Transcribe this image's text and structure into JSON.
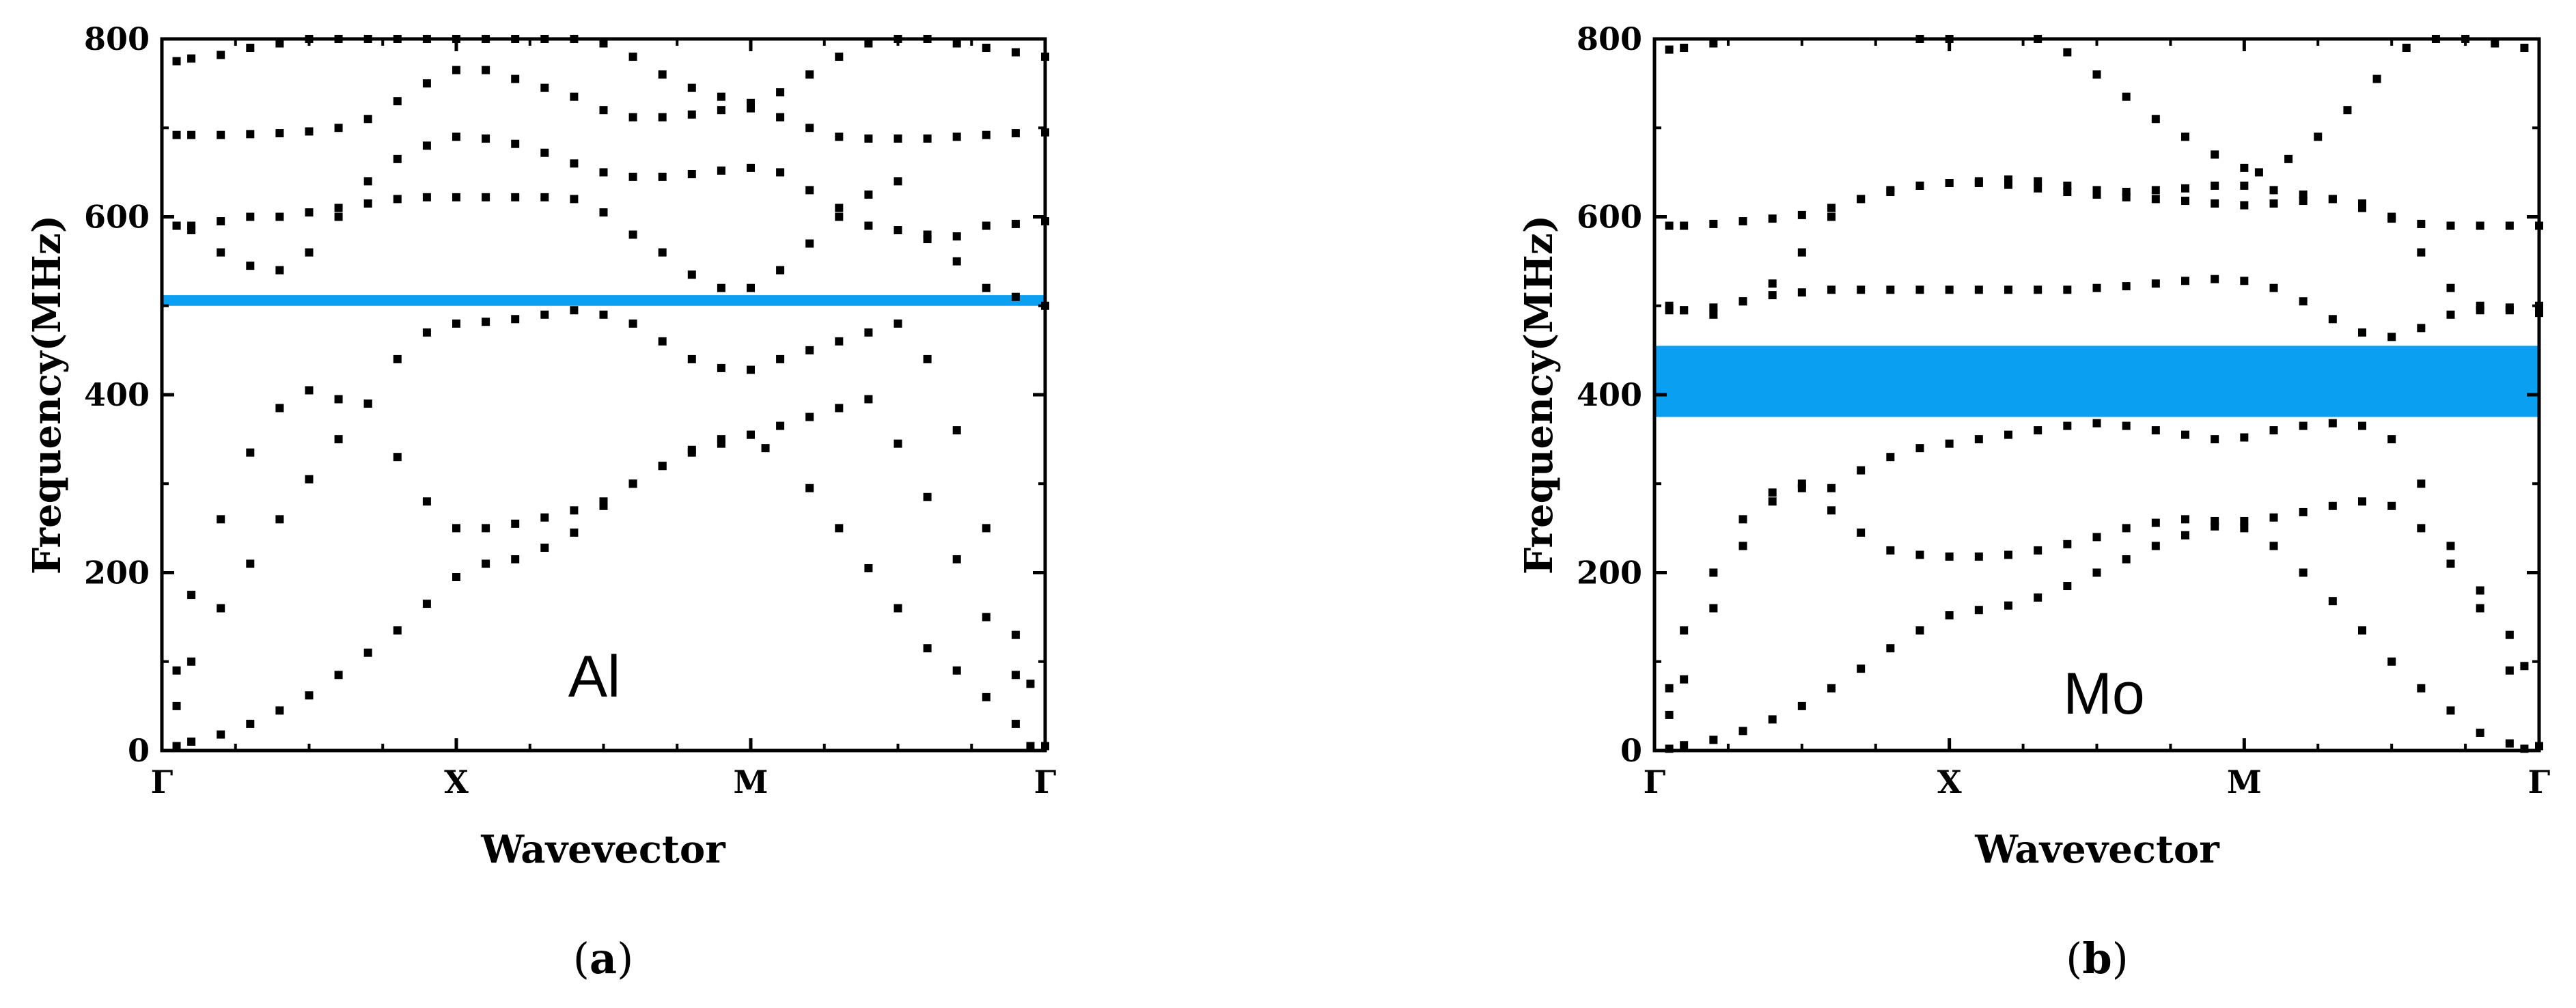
{
  "chart_data": [
    {
      "type": "scatter",
      "panel_label": "a",
      "annotation": "Al",
      "xlabel": "Wavevector",
      "ylabel": "Frequency(MHz)",
      "ylim": [
        0,
        800
      ],
      "yticks": [
        "0",
        "200",
        "400",
        "600",
        "800"
      ],
      "x_ticks": [
        "Γ",
        "X",
        "M",
        "Γ"
      ],
      "x_range": [
        0,
        3
      ],
      "band_gap": {
        "from": 500,
        "to": 512,
        "color": "#0a9ff0"
      },
      "point_color": "#000000",
      "series": [
        {
          "x": [
            0.05,
            0.1,
            0.2,
            0.3,
            0.4,
            0.5,
            0.6,
            0.7,
            0.8,
            0.9,
            1.0,
            1.1,
            1.2,
            1.3,
            1.4,
            1.5,
            1.6,
            1.7,
            1.8,
            1.9,
            2.0,
            2.1,
            2.2,
            2.3,
            2.4,
            2.5,
            2.6,
            2.7,
            2.8,
            2.9,
            3.0
          ],
          "y": [
            5,
            10,
            18,
            30,
            45,
            62,
            85,
            110,
            135,
            165,
            195,
            210,
            215,
            228,
            245,
            275,
            300,
            320,
            338,
            350,
            355,
            365,
            375,
            385,
            395,
            345,
            285,
            215,
            150,
            85,
            5
          ]
        },
        {
          "x": [
            0.05,
            0.1,
            0.2,
            0.3,
            0.4,
            0.5,
            0.6,
            0.7,
            0.8,
            0.9,
            1.0,
            1.1,
            1.2,
            1.3,
            1.4,
            1.5,
            1.6,
            1.7,
            1.8,
            1.9,
            2.0,
            2.05,
            2.2,
            2.3,
            2.4,
            2.5,
            2.6,
            2.7,
            2.8,
            2.9,
            2.95
          ],
          "y": [
            50,
            100,
            160,
            210,
            260,
            305,
            350,
            390,
            330,
            280,
            250,
            250,
            255,
            262,
            270,
            280,
            300,
            320,
            335,
            345,
            355,
            340,
            295,
            250,
            205,
            160,
            115,
            90,
            60,
            30,
            5
          ]
        },
        {
          "x": [
            0.05,
            0.1,
            0.2,
            0.3,
            0.4,
            0.5,
            0.6,
            0.7,
            0.8,
            0.9,
            1.0,
            1.1,
            1.2,
            1.3,
            1.4,
            1.5,
            1.6,
            1.7,
            1.8,
            1.9,
            2.0,
            2.1,
            2.2,
            2.3,
            2.4,
            2.5,
            2.6,
            2.7,
            2.8,
            2.9,
            2.95
          ],
          "y": [
            90,
            175,
            260,
            335,
            385,
            405,
            395,
            390,
            440,
            470,
            480,
            482,
            485,
            490,
            495,
            490,
            480,
            460,
            440,
            430,
            428,
            440,
            450,
            460,
            470,
            480,
            440,
            360,
            250,
            130,
            75
          ]
        },
        {
          "x": [
            0.05,
            0.1,
            0.2,
            0.3,
            0.4,
            0.5,
            0.6,
            0.7,
            0.8,
            0.9,
            1.0,
            1.1,
            1.2,
            1.3,
            1.4,
            1.5,
            1.6,
            1.7,
            1.8,
            1.9,
            2.0,
            2.1,
            2.2,
            2.3,
            2.4,
            2.5,
            2.6,
            2.7,
            2.8,
            2.9,
            3.0
          ],
          "y": [
            590,
            585,
            560,
            545,
            540,
            560,
            600,
            615,
            620,
            622,
            622,
            622,
            622,
            622,
            620,
            605,
            580,
            560,
            535,
            520,
            520,
            540,
            570,
            600,
            625,
            640,
            580,
            550,
            520,
            510,
            500
          ]
        },
        {
          "x": [
            0.05,
            0.1,
            0.2,
            0.3,
            0.4,
            0.5,
            0.6,
            0.7,
            0.8,
            0.9,
            1.0,
            1.1,
            1.2,
            1.3,
            1.4,
            1.5,
            1.6,
            1.7,
            1.8,
            1.9,
            2.0,
            2.1,
            2.2,
            2.3,
            2.4,
            2.5,
            2.6,
            2.7,
            2.8,
            2.9,
            3.0
          ],
          "y": [
            590,
            590,
            595,
            600,
            600,
            605,
            610,
            640,
            665,
            680,
            690,
            688,
            682,
            672,
            660,
            650,
            645,
            645,
            648,
            652,
            655,
            650,
            630,
            610,
            590,
            585,
            575,
            578,
            590,
            592,
            595
          ]
        },
        {
          "x": [
            0.05,
            0.1,
            0.2,
            0.3,
            0.4,
            0.5,
            0.6,
            0.7,
            0.8,
            0.9,
            1.0,
            1.1,
            1.2,
            1.3,
            1.4,
            1.5,
            1.6,
            1.7,
            1.8,
            1.9,
            2.0,
            2.1,
            2.2,
            2.3,
            2.4,
            2.5,
            2.6,
            2.7,
            2.8,
            2.9,
            3.0
          ],
          "y": [
            692,
            692,
            692,
            693,
            694,
            696,
            700,
            710,
            730,
            750,
            765,
            765,
            755,
            745,
            735,
            720,
            712,
            712,
            715,
            720,
            722,
            712,
            700,
            690,
            688,
            688,
            688,
            690,
            692,
            694,
            695
          ]
        },
        {
          "x": [
            0.05,
            0.1,
            0.2,
            0.3,
            0.4,
            0.5,
            0.6,
            0.7,
            0.8,
            0.9,
            1.0,
            1.1,
            1.2,
            1.3,
            1.4,
            1.5,
            1.6,
            1.7,
            1.8,
            1.9,
            2.0,
            2.1,
            2.2,
            2.3,
            2.4,
            2.5,
            2.6,
            2.7,
            2.8,
            2.9,
            3.0
          ],
          "y": [
            775,
            778,
            782,
            790,
            795,
            800,
            800,
            800,
            800,
            800,
            800,
            800,
            800,
            800,
            800,
            795,
            780,
            760,
            745,
            735,
            728,
            740,
            760,
            780,
            795,
            800,
            800,
            795,
            790,
            785,
            780
          ]
        }
      ]
    },
    {
      "type": "scatter",
      "panel_label": "b",
      "annotation": "Mo",
      "xlabel": "Wavevector",
      "ylabel": "Frequency(MHz)",
      "ylim": [
        0,
        800
      ],
      "yticks": [
        "0",
        "200",
        "400",
        "600",
        "800"
      ],
      "x_ticks": [
        "Γ",
        "X",
        "M",
        "Γ"
      ],
      "x_range": [
        0,
        3
      ],
      "band_gap": {
        "from": 375,
        "to": 455,
        "color": "#0a9ff0"
      },
      "point_color": "#000000",
      "series": [
        {
          "x": [
            0.05,
            0.1,
            0.2,
            0.3,
            0.4,
            0.5,
            0.6,
            0.7,
            0.8,
            0.9,
            1.0,
            1.1,
            1.2,
            1.3,
            1.4,
            1.5,
            1.6,
            1.7,
            1.8,
            1.9,
            2.0,
            2.1,
            2.2,
            2.3,
            2.4,
            2.5,
            2.6,
            2.7,
            2.8,
            2.9,
            3.0
          ],
          "y": [
            2,
            6,
            12,
            22,
            35,
            50,
            70,
            92,
            115,
            135,
            152,
            158,
            163,
            172,
            185,
            200,
            215,
            230,
            242,
            252,
            258,
            262,
            268,
            275,
            280,
            275,
            250,
            210,
            160,
            90,
            5
          ]
        },
        {
          "x": [
            0.05,
            0.1,
            0.2,
            0.3,
            0.4,
            0.5,
            0.6,
            0.7,
            0.8,
            0.9,
            1.0,
            1.1,
            1.2,
            1.3,
            1.4,
            1.5,
            1.6,
            1.7,
            1.8,
            1.9,
            2.0,
            2.1,
            2.2,
            2.3,
            2.4,
            2.5,
            2.6,
            2.7,
            2.8,
            2.9,
            2.95
          ],
          "y": [
            40,
            80,
            160,
            230,
            280,
            295,
            270,
            245,
            225,
            220,
            218,
            218,
            220,
            225,
            232,
            240,
            250,
            256,
            260,
            258,
            250,
            230,
            200,
            168,
            135,
            100,
            70,
            45,
            20,
            8,
            2
          ]
        },
        {
          "x": [
            0.05,
            0.1,
            0.2,
            0.3,
            0.4,
            0.5,
            0.6,
            0.7,
            0.8,
            0.9,
            1.0,
            1.1,
            1.2,
            1.3,
            1.4,
            1.5,
            1.6,
            1.7,
            1.8,
            1.9,
            2.0,
            2.1,
            2.2,
            2.3,
            2.4,
            2.5,
            2.6,
            2.7,
            2.8,
            2.9,
            2.95
          ],
          "y": [
            70,
            135,
            200,
            260,
            290,
            300,
            295,
            315,
            330,
            340,
            345,
            350,
            355,
            360,
            365,
            368,
            365,
            360,
            355,
            350,
            352,
            360,
            365,
            368,
            365,
            350,
            300,
            230,
            180,
            130,
            95
          ]
        },
        {
          "x": [
            0.05,
            0.1,
            0.2,
            0.3,
            0.4,
            0.5,
            0.6,
            0.7,
            0.8,
            0.9,
            1.0,
            1.1,
            1.2,
            1.3,
            1.4,
            1.5,
            1.6,
            1.7,
            1.8,
            1.9,
            2.0,
            2.1,
            2.2,
            2.3,
            2.4,
            2.5,
            2.6,
            2.7,
            2.8,
            2.9,
            3.0
          ],
          "y": [
            495,
            495,
            498,
            505,
            512,
            515,
            518,
            518,
            518,
            518,
            518,
            518,
            518,
            518,
            518,
            520,
            522,
            525,
            528,
            530,
            528,
            520,
            505,
            485,
            470,
            465,
            475,
            490,
            495,
            498,
            500
          ]
        },
        {
          "x": [
            0.05,
            0.1,
            0.2,
            0.3,
            0.4,
            0.5,
            0.6,
            0.7,
            0.8,
            0.9,
            1.0,
            1.1,
            1.2,
            1.3,
            1.4,
            1.5,
            1.6,
            1.7,
            1.8,
            1.9,
            2.0,
            2.1,
            2.2,
            2.3,
            2.4,
            2.5,
            2.6,
            2.7,
            2.8,
            2.9,
            3.0
          ],
          "y": [
            500,
            495,
            490,
            505,
            525,
            560,
            600,
            620,
            630,
            635,
            638,
            638,
            636,
            632,
            628,
            625,
            622,
            620,
            618,
            615,
            613,
            615,
            618,
            620,
            615,
            600,
            560,
            520,
            500,
            495,
            492
          ]
        },
        {
          "x": [
            0.05,
            0.1,
            0.2,
            0.3,
            0.4,
            0.5,
            0.6,
            0.7,
            0.8,
            0.9,
            1.0,
            1.1,
            1.2,
            1.3,
            1.4,
            1.5,
            1.6,
            1.7,
            1.8,
            1.9,
            2.0,
            2.1,
            2.2,
            2.3,
            2.4,
            2.5,
            2.6,
            2.7,
            2.8,
            2.9,
            3.0
          ],
          "y": [
            590,
            590,
            592,
            595,
            598,
            602,
            610,
            620,
            628,
            635,
            638,
            640,
            642,
            640,
            635,
            630,
            628,
            630,
            632,
            635,
            635,
            630,
            625,
            620,
            610,
            598,
            592,
            590,
            590,
            590,
            590
          ]
        },
        {
          "x": [
            0.05,
            0.1,
            0.2,
            0.9,
            1.0,
            1.3,
            1.4,
            1.5,
            1.6,
            1.7,
            1.8,
            1.9,
            2.0,
            2.05,
            2.15,
            2.25,
            2.35,
            2.45,
            2.55,
            2.65,
            2.75,
            2.85,
            2.95
          ],
          "y": [
            788,
            790,
            795,
            800,
            800,
            800,
            785,
            760,
            735,
            710,
            690,
            670,
            655,
            650,
            665,
            690,
            720,
            755,
            790,
            800,
            800,
            795,
            790
          ]
        }
      ]
    }
  ]
}
